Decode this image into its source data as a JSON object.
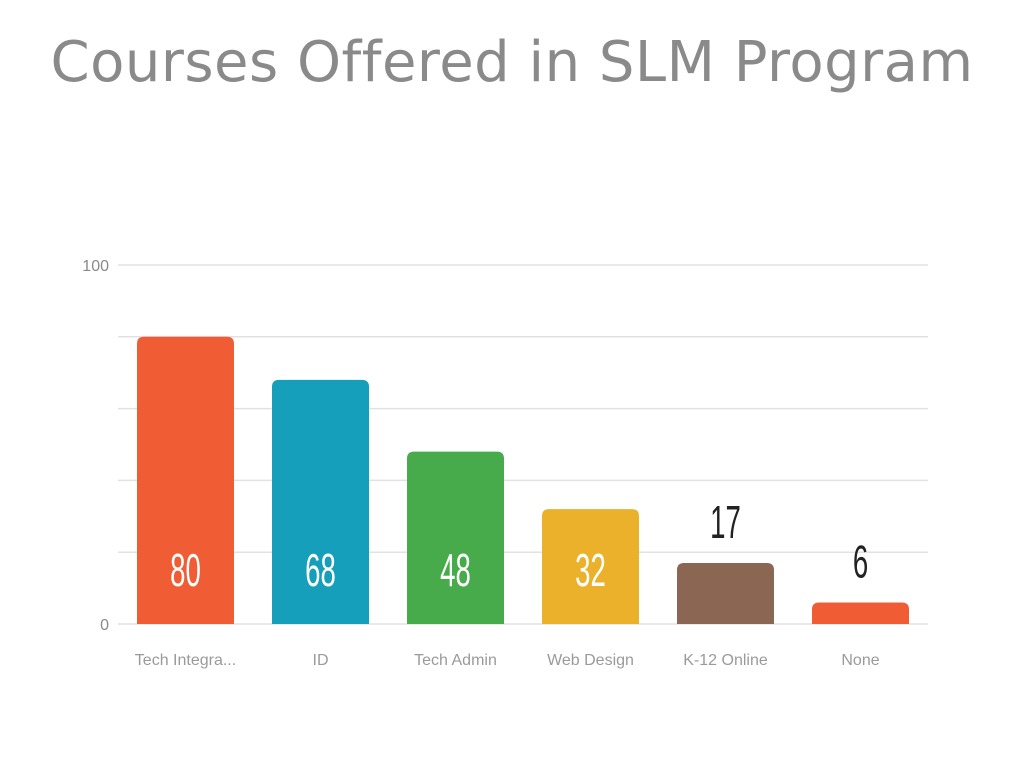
{
  "chart_data": {
    "type": "bar",
    "title": "Courses Offered in SLM Program",
    "categories": [
      "Tech Integra...",
      "ID",
      "Tech Admin",
      "Web Design",
      "K-12 Online",
      "None"
    ],
    "values": [
      80,
      68,
      48,
      32,
      17,
      6
    ],
    "colors": [
      "#f05d35",
      "#159fbb",
      "#47ab4b",
      "#ebb12b",
      "#8b6652",
      "#f05d35"
    ],
    "ylim": [
      0,
      100
    ],
    "yticks": [
      "0",
      "100"
    ],
    "grid": true,
    "xlabel": "",
    "ylabel": ""
  }
}
